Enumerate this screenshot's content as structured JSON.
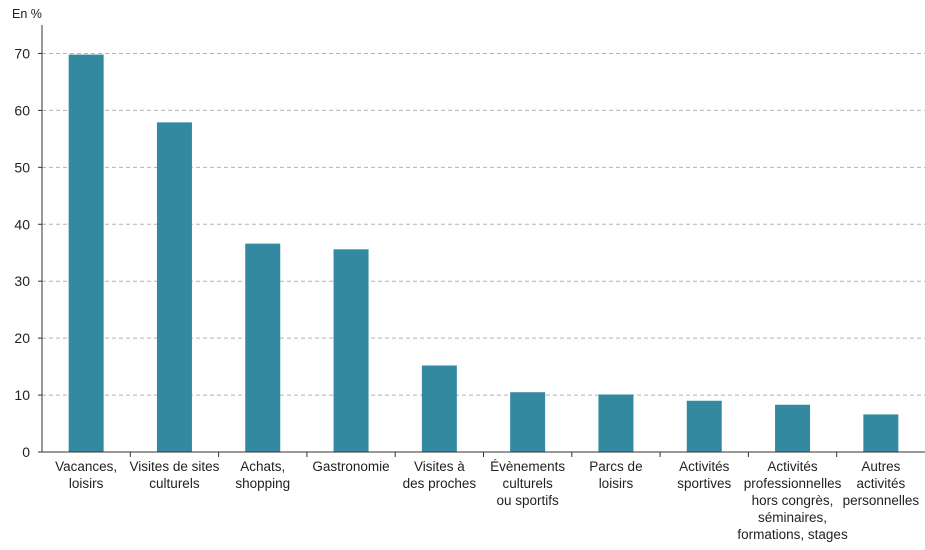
{
  "chart_data": {
    "type": "bar",
    "unit_label": "En %",
    "title": "",
    "xlabel": "",
    "ylabel": "",
    "ylim": [
      0,
      75
    ],
    "yticks": [
      0,
      10,
      20,
      30,
      40,
      50,
      60,
      70
    ],
    "grid": true,
    "legend": "none",
    "colors": {
      "bar": "#338aa0",
      "grid": "#b3b3b3",
      "axis": "#333333"
    },
    "categories": [
      [
        "Vacances,",
        "loisirs"
      ],
      [
        "Visites de sites",
        "culturels"
      ],
      [
        "Achats,",
        "shopping"
      ],
      [
        "Gastronomie"
      ],
      [
        "Visites à",
        "des proches"
      ],
      [
        "Évènements",
        "culturels",
        "ou sportifs"
      ],
      [
        "Parcs de",
        "loisirs"
      ],
      [
        "Activités",
        "sportives"
      ],
      [
        "Activités",
        "professionnelles",
        "hors congrès,",
        "séminaires,",
        "formations, stages"
      ],
      [
        "Autres",
        "activités",
        "personnelles"
      ]
    ],
    "values": [
      69.8,
      57.9,
      36.6,
      35.6,
      15.2,
      10.5,
      10.1,
      9.0,
      8.3,
      6.6
    ]
  }
}
